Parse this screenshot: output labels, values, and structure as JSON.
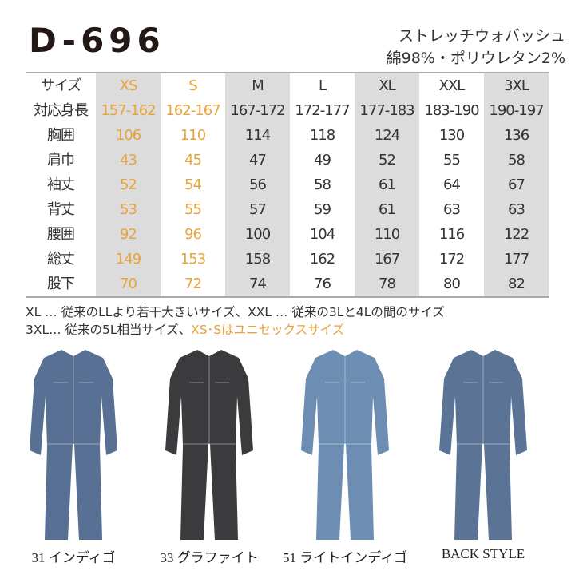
{
  "header": {
    "model": "D-696",
    "fabric": "ストレッチウォバッシュ",
    "composition": "綿98%・ポリウレタン2%"
  },
  "table": {
    "columns": [
      {
        "label": "XS",
        "gray": true,
        "accent": true
      },
      {
        "label": "S",
        "gray": false,
        "accent": true
      },
      {
        "label": "M",
        "gray": true,
        "accent": false
      },
      {
        "label": "L",
        "gray": false,
        "accent": false
      },
      {
        "label": "XL",
        "gray": true,
        "accent": false
      },
      {
        "label": "XXL",
        "gray": false,
        "accent": false
      },
      {
        "label": "3XL",
        "gray": true,
        "accent": false
      }
    ],
    "header_label": "サイズ",
    "rows": [
      {
        "label": "対応身長",
        "values": [
          "157-162",
          "162-167",
          "167-172",
          "172-177",
          "177-183",
          "183-190",
          "190-197"
        ]
      },
      {
        "label": "胸囲",
        "values": [
          "106",
          "110",
          "114",
          "118",
          "124",
          "130",
          "136"
        ]
      },
      {
        "label": "肩巾",
        "values": [
          "43",
          "45",
          "47",
          "49",
          "52",
          "55",
          "58"
        ]
      },
      {
        "label": "袖丈",
        "values": [
          "52",
          "54",
          "56",
          "58",
          "61",
          "64",
          "67"
        ]
      },
      {
        "label": "背丈",
        "values": [
          "53",
          "55",
          "57",
          "59",
          "61",
          "63",
          "63"
        ]
      },
      {
        "label": "腰囲",
        "values": [
          "92",
          "96",
          "100",
          "104",
          "110",
          "116",
          "122"
        ]
      },
      {
        "label": "総丈",
        "values": [
          "149",
          "153",
          "158",
          "162",
          "167",
          "172",
          "177"
        ]
      },
      {
        "label": "股下",
        "values": [
          "70",
          "72",
          "74",
          "76",
          "78",
          "80",
          "82"
        ]
      }
    ]
  },
  "notes": {
    "line1": "XL … 従来のLLより若干大きいサイズ、XXL … 従来の3Lと4Lの間のサイズ",
    "line2_prefix": "3XL… 従来の5L相当サイズ、",
    "line2_highlight": "XS･Sはユニセックスサイズ"
  },
  "colors": {
    "accent": "#e8a33a",
    "gray_column": "#dcdcdc"
  },
  "products": [
    {
      "caption": "31 インディゴ",
      "color": "#587093"
    },
    {
      "caption": "33 グラファイト",
      "color": "#3b3b3e"
    },
    {
      "caption": "51 ライトインディゴ",
      "color": "#6d8db3"
    },
    {
      "caption": "BACK STYLE",
      "color": "#5b7496"
    }
  ]
}
